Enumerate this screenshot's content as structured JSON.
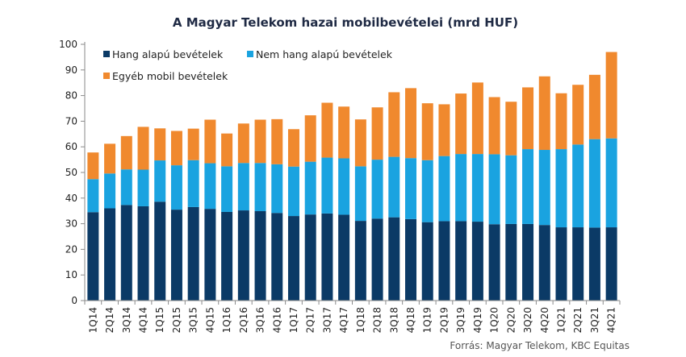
{
  "chart_data": {
    "type": "bar",
    "stacked": true,
    "title": "A Magyar Telekom hazai mobilbevételei  (mrd HUF)",
    "xlabel": "",
    "ylabel": "",
    "ylim": [
      0,
      100
    ],
    "yticks": [
      0,
      10,
      20,
      30,
      40,
      50,
      60,
      70,
      80,
      90,
      100
    ],
    "grid": false,
    "legend_position": "top-left",
    "categories": [
      "1Q14",
      "2Q14",
      "3Q14",
      "4Q14",
      "1Q15",
      "2Q15",
      "3Q15",
      "4Q15",
      "1Q16",
      "2Q16",
      "3Q16",
      "4Q16",
      "1Q17",
      "2Q17",
      "3Q17",
      "4Q17",
      "1Q18",
      "2Q18",
      "3Q18",
      "4Q18",
      "1Q19",
      "2Q19",
      "3Q19",
      "4Q19",
      "1Q20",
      "2Q20",
      "3Q20",
      "4Q20",
      "1Q21",
      "2Q21",
      "3Q21",
      "4Q21"
    ],
    "series": [
      {
        "name": "Hang alapú bevételek",
        "color": "#0b3a66",
        "values": [
          34.5,
          36,
          37.3,
          36.8,
          38.6,
          35.5,
          36.5,
          35.8,
          34.6,
          35.2,
          34.9,
          34.2,
          33,
          33.6,
          34,
          33.5,
          31.1,
          32,
          32.5,
          31.8,
          30.6,
          31,
          31,
          30.8,
          29.8,
          29.9,
          29.9,
          29.5,
          28.6,
          28.6,
          28.5,
          28.6
        ]
      },
      {
        "name": "Nem hang alapú bevételek",
        "color": "#1aa3e0",
        "values": [
          12.9,
          13.6,
          13.9,
          14.3,
          16.1,
          17.3,
          18.3,
          17.8,
          17.8,
          18.5,
          18.8,
          19,
          19.3,
          20.6,
          21.8,
          22,
          21.3,
          23,
          23.6,
          23.8,
          24.2,
          25.4,
          26.2,
          26.4,
          27.3,
          26.8,
          29.2,
          29.3,
          30.5,
          32.3,
          34.5,
          34.7
        ]
      },
      {
        "name": "Egyéb mobil bevételek",
        "color": "#f0892e",
        "values": [
          10.4,
          11.6,
          13,
          16.7,
          12.5,
          13.4,
          12.3,
          17,
          12.8,
          15.4,
          16.9,
          17.6,
          14.6,
          18.1,
          21.4,
          20.2,
          18.3,
          20.4,
          25.2,
          27.3,
          22.2,
          20.2,
          23.6,
          27.9,
          22.3,
          20.9,
          24.1,
          28.7,
          21.8,
          23.3,
          25.1,
          33.7
        ]
      }
    ],
    "source": "Forrás: Magyar Telekom, KBC Equitas"
  }
}
